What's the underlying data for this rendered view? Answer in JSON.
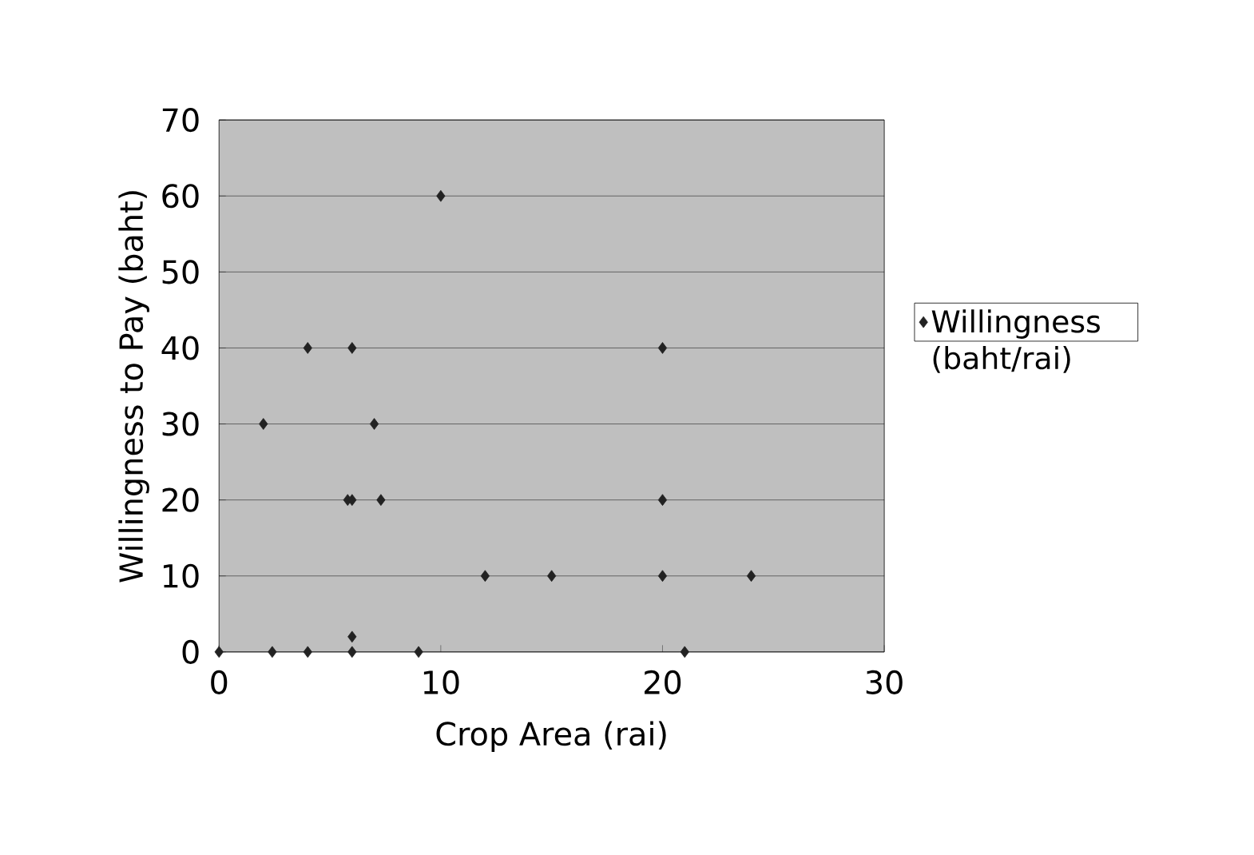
{
  "chart_data": {
    "type": "scatter",
    "xlabel": "Crop Area (rai)",
    "ylabel": "Willingness to Pay (baht)",
    "xlim": [
      0,
      30
    ],
    "xticks": [
      0,
      10,
      20,
      30
    ],
    "ylim": [
      0,
      70
    ],
    "yticks": [
      0,
      10,
      20,
      30,
      40,
      50,
      60,
      70
    ],
    "grid": "y",
    "legend": "right",
    "marker": "diamond",
    "series": [
      {
        "name": "Willingness (baht/rai)",
        "color": "#222222",
        "x": [
          10,
          4,
          6,
          20,
          2,
          7,
          5.8,
          6,
          7.3,
          20,
          12,
          15,
          20,
          24,
          0,
          2.4,
          4,
          6,
          9,
          21,
          6
        ],
        "values": [
          60,
          40,
          40,
          40,
          30,
          30,
          20,
          20,
          20,
          20,
          10,
          10,
          10,
          10,
          0,
          0,
          0,
          0,
          0,
          0,
          2
        ]
      }
    ]
  }
}
